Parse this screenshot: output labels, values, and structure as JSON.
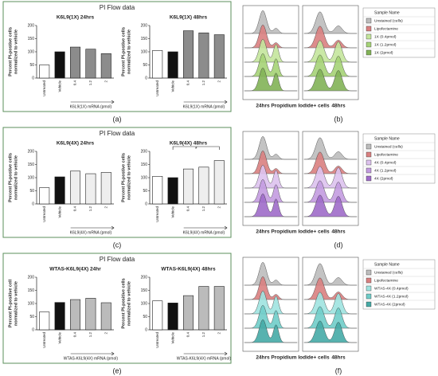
{
  "rows": [
    {
      "header": "PI Flow data",
      "label_left": "(a)",
      "label_right": "(b)"
    },
    {
      "header": "PI Flow data",
      "label_left": "(c)",
      "label_right": "(d)"
    },
    {
      "header": "PI Flow data",
      "label_left": "(e)",
      "label_right": "(f)"
    }
  ],
  "chart_data": [
    {
      "type": "bar",
      "title": "K6L9(1X) 24hrs",
      "ylabel": [
        "Percent PI-postive cells",
        "normalized to vehicle"
      ],
      "xlabel": "K6L9(1X) mRNA (pmol)",
      "categories": [
        "Untreated",
        "Vehicle",
        "0.4",
        "1.2",
        "2"
      ],
      "values": [
        50,
        100,
        118,
        110,
        93
      ],
      "colors": [
        "#ffffff",
        "#111111",
        "#8c8c8c",
        "#8c8c8c",
        "#8c8c8c"
      ],
      "ylim": [
        0,
        200
      ],
      "yticks": [
        0,
        50,
        100,
        150,
        200
      ]
    },
    {
      "type": "bar",
      "title": "K6L9(1X) 48hrs",
      "ylabel": [
        "Percent PI-postive cells",
        "normalized to vehicle"
      ],
      "xlabel": "K6L9(1X) mRNA (pmol)",
      "categories": [
        "Untreated",
        "Vehicle",
        "0.4",
        "1.2",
        "2"
      ],
      "values": [
        105,
        100,
        180,
        172,
        165
      ],
      "colors": [
        "#ffffff",
        "#111111",
        "#8c8c8c",
        "#8c8c8c",
        "#8c8c8c"
      ],
      "ylim": [
        0,
        200
      ],
      "yticks": [
        0,
        50,
        100,
        150,
        200
      ]
    },
    {
      "type": "bar",
      "title": "K6L9(4X) 24hrs",
      "ylabel": [
        "Percent PI-postive cells",
        "normalized to vehicle"
      ],
      "xlabel": "K6L9(4X) mRNA (pmol)",
      "categories": [
        "Untreated",
        "Vehicle",
        "0.4",
        "1.2",
        "2"
      ],
      "values": [
        62,
        103,
        125,
        115,
        120
      ],
      "colors": [
        "#ffffff",
        "#111111",
        "#eeeeee",
        "#eeeeee",
        "#eeeeee"
      ],
      "ylim": [
        0,
        200
      ],
      "yticks": [
        0,
        50,
        100,
        150,
        200
      ]
    },
    {
      "type": "bar",
      "title": "K6L9(4X) 48hrs",
      "ylabel": [
        "Percent PI-postive cells",
        "normalized to vehicle"
      ],
      "xlabel": "K6L9(4X) mRNA (pmol)",
      "categories": [
        "Untreated",
        "Vehicle",
        "0.4",
        "1.2",
        "2"
      ],
      "values": [
        105,
        100,
        133,
        140,
        165
      ],
      "colors": [
        "#ffffff",
        "#111111",
        "#eeeeee",
        "#eeeeee",
        "#eeeeee"
      ],
      "ylim": [
        0,
        200
      ],
      "yticks": [
        0,
        50,
        100,
        150,
        200
      ],
      "annotation": "*"
    },
    {
      "type": "bar",
      "title": "WTAS-K6L9(4X) 24hr",
      "ylabel": [
        "Percent PI-positive cell",
        "normalized to vehicle"
      ],
      "xlabel": "WTAS-K6L9(4X) mRNA (pmol)",
      "categories": [
        "Untreated",
        "Vehicle",
        "0.4",
        "1.2",
        "2"
      ],
      "values": [
        68,
        104,
        115,
        120,
        103
      ],
      "colors": [
        "#ffffff",
        "#111111",
        "#bbbbbb",
        "#bbbbbb",
        "#bbbbbb"
      ],
      "ylim": [
        0,
        200
      ],
      "yticks": [
        0,
        50,
        100,
        150,
        200
      ]
    },
    {
      "type": "bar",
      "title": "WTAS-K6L9(4X) 48hrs",
      "ylabel": [
        "Percent PI-positive cells",
        "normalized to vehicle"
      ],
      "xlabel": "WTAS-K6L9(4X) mRNA (pmol)",
      "categories": [
        "Untreated",
        "Vehicle",
        "0.4",
        "1.2",
        "2"
      ],
      "values": [
        110,
        102,
        130,
        165,
        165
      ],
      "colors": [
        "#ffffff",
        "#111111",
        "#bbbbbb",
        "#bbbbbb",
        "#bbbbbb"
      ],
      "ylim": [
        0,
        200
      ],
      "yticks": [
        0,
        50,
        100,
        150,
        200
      ]
    }
  ],
  "histograms": [
    {
      "legend_title": "Sample Name",
      "labels": [
        "24hrs",
        "Propidium Iodide+ cells",
        "48hrs"
      ],
      "entries": [
        {
          "name": "Unstained (cells)",
          "color": "#bdbdbd"
        },
        {
          "name": "Lipofectamine",
          "color": "#d98080"
        },
        {
          "name": "1X (0.4pmol)",
          "color": "#c4e69c"
        },
        {
          "name": "1X (1.2pmol)",
          "color": "#a5d376"
        },
        {
          "name": "1X (2pmol)",
          "color": "#82b356"
        }
      ]
    },
    {
      "legend_title": "Sample Name",
      "labels": [
        "24hrs",
        "Propidium Iodide+ cells",
        "48hrs"
      ],
      "entries": [
        {
          "name": "Unstained (cells)",
          "color": "#bdbdbd"
        },
        {
          "name": "Lipofectamine",
          "color": "#d98080"
        },
        {
          "name": "4X (0.4pmol)",
          "color": "#ddc2ee"
        },
        {
          "name": "4X (1.2pmol)",
          "color": "#c39be0"
        },
        {
          "name": "4X (2pmol)",
          "color": "#9f6bc9"
        }
      ]
    },
    {
      "legend_title": "Sample Name",
      "labels": [
        "24hrs",
        "Propidium Iodide+ cells",
        "48hrs"
      ],
      "entries": [
        {
          "name": "Unstained (cells)",
          "color": "#bdbdbd"
        },
        {
          "name": "Lipofectamine",
          "color": "#d98080"
        },
        {
          "name": "WTAS-4X (0.4pmol)",
          "color": "#9fe3e0"
        },
        {
          "name": "WTAS-4X (1.2pmol)",
          "color": "#6fcdc9"
        },
        {
          "name": "WTAS-4X (2pmol)",
          "color": "#45aaa6"
        }
      ]
    }
  ]
}
